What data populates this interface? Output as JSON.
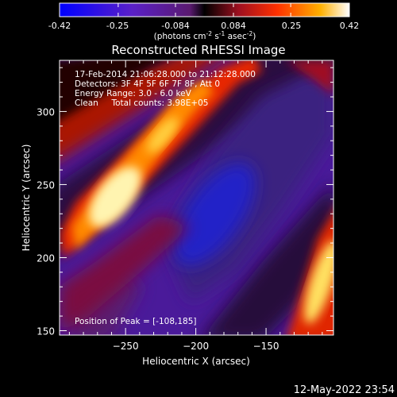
{
  "colorbar": {
    "ticks": [
      "-0.42",
      "-0.25",
      "-0.084",
      "0.084",
      "0.25",
      "0.42"
    ],
    "min": -0.42,
    "max": 0.42,
    "units_prefix": "(photons cm",
    "units_sup1": "-2",
    "units_mid": " s",
    "units_sup2": "-1",
    "units_mid2": " asec",
    "units_sup3": "-2",
    "units_suffix": ")"
  },
  "chart_data": {
    "type": "heatmap",
    "title": "Reconstructed RHESSI Image",
    "xlabel": "Heliocentric X (arcsec)",
    "ylabel": "Heliocentric Y (arcsec)",
    "xlim": [
      -297,
      -102
    ],
    "ylim": [
      147,
      335
    ],
    "x_ticks": [
      -250,
      -200,
      -150
    ],
    "y_ticks": [
      150,
      200,
      250,
      300
    ],
    "x_tick_labels": [
      "−250",
      "−200",
      "−150"
    ],
    "y_tick_labels": [
      "150",
      "200",
      "250",
      "300"
    ],
    "colormap": "blue-purple-red-yellow-white",
    "peak_position": [
      -108,
      185
    ],
    "annotations": [
      "17-Feb-2014 21:06:28.000 to 21:12:28.000",
      "Detectors: 3F 4F 5F 6F 7F 8F, Att 0",
      "Energy Range: 3.0 - 6.0 keV",
      "Clean     Total counts: 3.98E+05",
      "Position of Peak = [-108,185]"
    ]
  },
  "footer": {
    "date": "12-May-2022 23:54"
  }
}
